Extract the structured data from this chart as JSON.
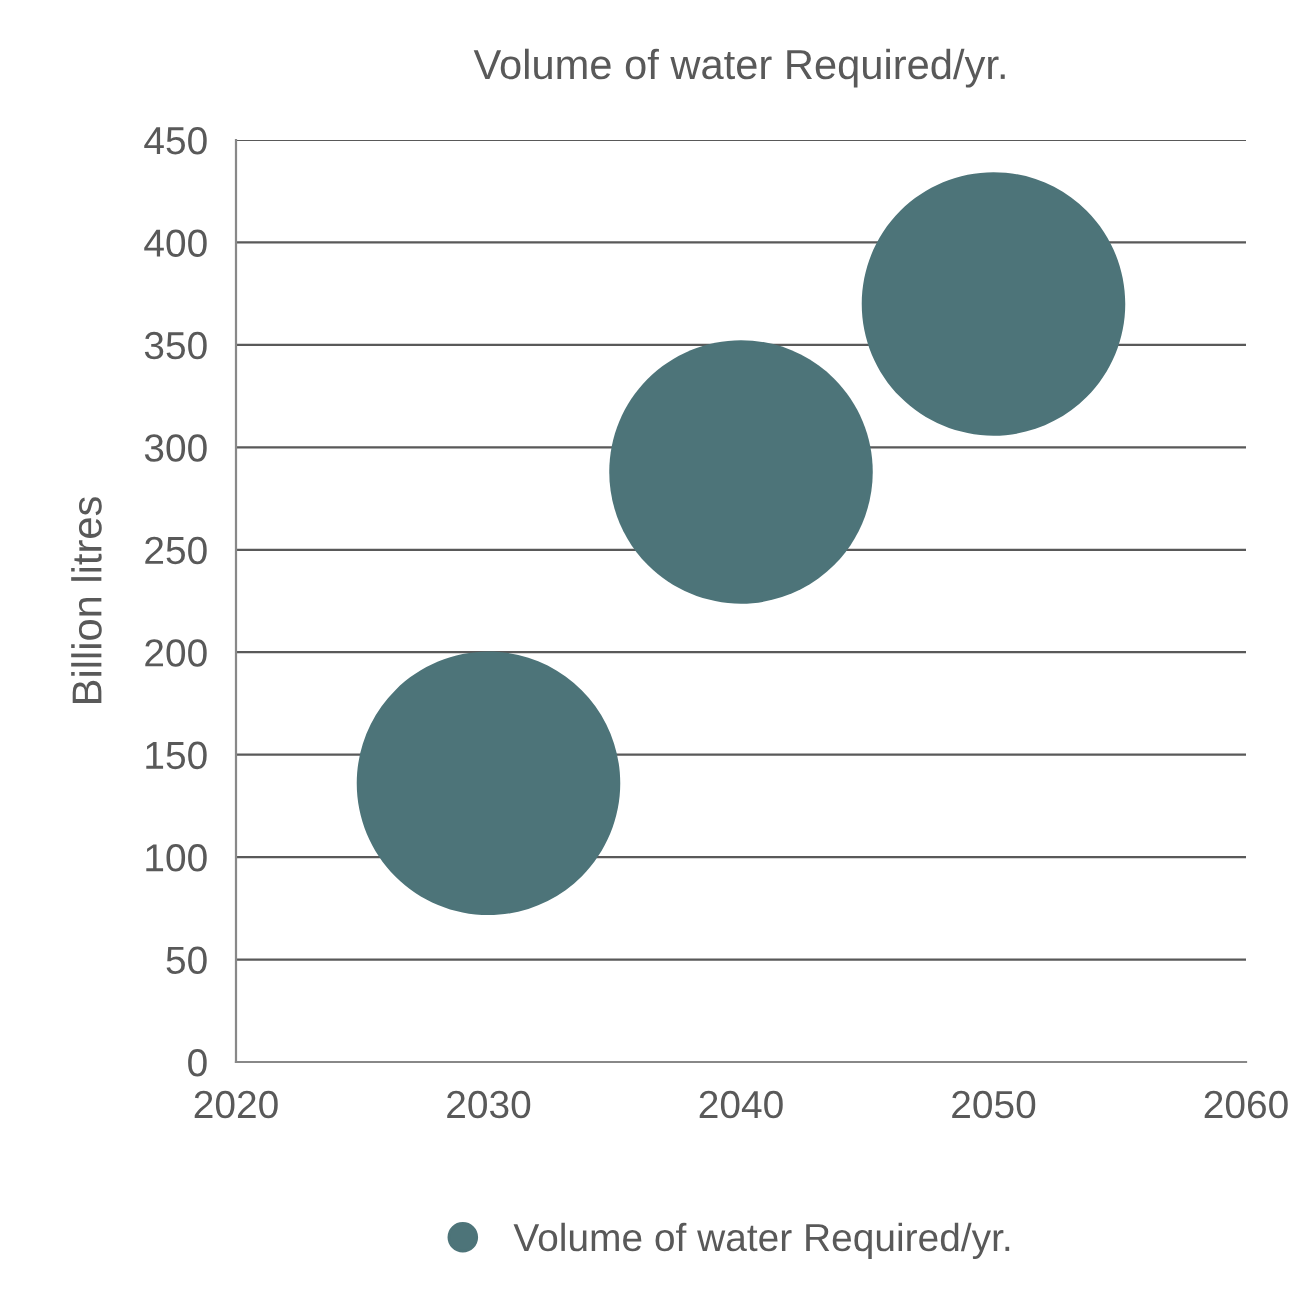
{
  "chart_data": {
    "type": "bubble",
    "title": "Volume of water Required/yr.",
    "ylabel": "Billion litres",
    "x": [
      2030,
      2040,
      2050
    ],
    "series": [
      {
        "name": "Volume of water Required/yr.",
        "color": "#4d7479",
        "values": [
          136,
          288,
          370
        ],
        "sizes": [
          1,
          1,
          1
        ]
      }
    ],
    "xlim": [
      2020,
      2060
    ],
    "xticks": [
      2020,
      2030,
      2040,
      2050,
      2060
    ],
    "ylim": [
      0,
      450
    ],
    "yticks": [
      0,
      50,
      100,
      150,
      200,
      250,
      300,
      350,
      400,
      450
    ],
    "grid": "y",
    "legend": "bottom"
  }
}
